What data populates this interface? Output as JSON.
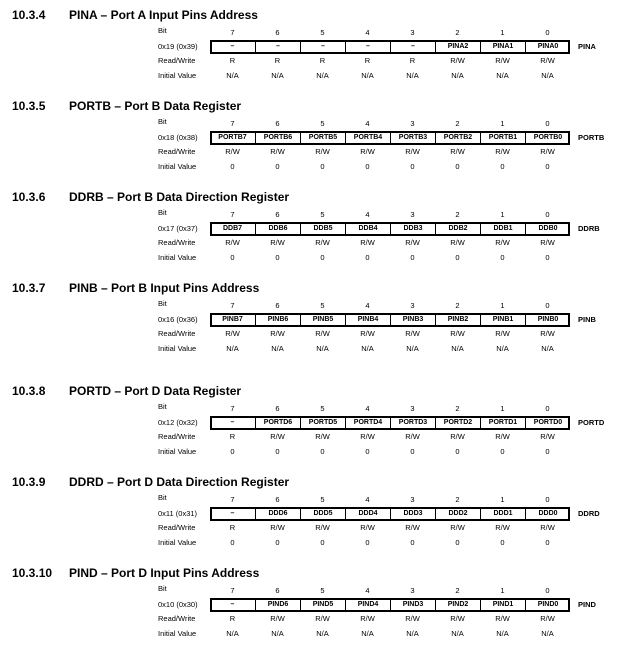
{
  "labels": {
    "bit": "Bit",
    "read_write": "Read/Write",
    "initial_value": "Initial Value"
  },
  "sections": [
    {
      "number": "10.3.4",
      "title": "PINA – Port A Input Pins Address",
      "address": "0x19 (0x39)",
      "register": "PINA",
      "bits": [
        "7",
        "6",
        "5",
        "4",
        "3",
        "2",
        "1",
        "0"
      ],
      "cells": [
        "–",
        "–",
        "–",
        "–",
        "–",
        "PINA2",
        "PINA1",
        "PINA0"
      ],
      "rw": [
        "R",
        "R",
        "R",
        "R",
        "R",
        "R/W",
        "R/W",
        "R/W"
      ],
      "init": [
        "N/A",
        "N/A",
        "N/A",
        "N/A",
        "N/A",
        "N/A",
        "N/A",
        "N/A"
      ]
    },
    {
      "number": "10.3.5",
      "title": "PORTB – Port B Data Register",
      "address": "0x18 (0x38)",
      "register": "PORTB",
      "bits": [
        "7",
        "6",
        "5",
        "4",
        "3",
        "2",
        "1",
        "0"
      ],
      "cells": [
        "PORTB7",
        "PORTB6",
        "PORTB5",
        "PORTB4",
        "PORTB3",
        "PORTB2",
        "PORTB1",
        "PORTB0"
      ],
      "rw": [
        "R/W",
        "R/W",
        "R/W",
        "R/W",
        "R/W",
        "R/W",
        "R/W",
        "R/W"
      ],
      "init": [
        "0",
        "0",
        "0",
        "0",
        "0",
        "0",
        "0",
        "0"
      ]
    },
    {
      "number": "10.3.6",
      "title": "DDRB – Port B Data Direction Register",
      "address": "0x17 (0x37)",
      "register": "DDRB",
      "bits": [
        "7",
        "6",
        "5",
        "4",
        "3",
        "2",
        "1",
        "0"
      ],
      "cells": [
        "DDB7",
        "DDB6",
        "DDB5",
        "DDB4",
        "DDB3",
        "DDB2",
        "DDB1",
        "DDB0"
      ],
      "rw": [
        "R/W",
        "R/W",
        "R/W",
        "R/W",
        "R/W",
        "R/W",
        "R/W",
        "R/W"
      ],
      "init": [
        "0",
        "0",
        "0",
        "0",
        "0",
        "0",
        "0",
        "0"
      ]
    },
    {
      "number": "10.3.7",
      "title": "PINB – Port B Input Pins Address",
      "address": "0x16 (0x36)",
      "register": "PINB",
      "bits": [
        "7",
        "6",
        "5",
        "4",
        "3",
        "2",
        "1",
        "0"
      ],
      "cells": [
        "PINB7",
        "PINB6",
        "PINB5",
        "PINB4",
        "PINB3",
        "PINB2",
        "PINB1",
        "PINB0"
      ],
      "rw": [
        "R/W",
        "R/W",
        "R/W",
        "R/W",
        "R/W",
        "R/W",
        "R/W",
        "R/W"
      ],
      "init": [
        "N/A",
        "N/A",
        "N/A",
        "N/A",
        "N/A",
        "N/A",
        "N/A",
        "N/A"
      ]
    },
    {
      "number": "10.3.8",
      "title": "PORTD – Port D Data Register",
      "address": "0x12 (0x32)",
      "register": "PORTD",
      "bits": [
        "7",
        "6",
        "5",
        "4",
        "3",
        "2",
        "1",
        "0"
      ],
      "cells": [
        "–",
        "PORTD6",
        "PORTD5",
        "PORTD4",
        "PORTD3",
        "PORTD2",
        "PORTD1",
        "PORTD0"
      ],
      "rw": [
        "R",
        "R/W",
        "R/W",
        "R/W",
        "R/W",
        "R/W",
        "R/W",
        "R/W"
      ],
      "init": [
        "0",
        "0",
        "0",
        "0",
        "0",
        "0",
        "0",
        "0"
      ]
    },
    {
      "number": "10.3.9",
      "title": "DDRD – Port D Data Direction Register",
      "address": "0x11 (0x31)",
      "register": "DDRD",
      "bits": [
        "7",
        "6",
        "5",
        "4",
        "3",
        "2",
        "1",
        "0"
      ],
      "cells": [
        "–",
        "DDD6",
        "DDD5",
        "DDD4",
        "DDD3",
        "DDD2",
        "DDD1",
        "DDD0"
      ],
      "rw": [
        "R",
        "R/W",
        "R/W",
        "R/W",
        "R/W",
        "R/W",
        "R/W",
        "R/W"
      ],
      "init": [
        "0",
        "0",
        "0",
        "0",
        "0",
        "0",
        "0",
        "0"
      ]
    },
    {
      "number": "10.3.10",
      "title": "PIND – Port D Input Pins Address",
      "address": "0x10 (0x30)",
      "register": "PIND",
      "bits": [
        "7",
        "6",
        "5",
        "4",
        "3",
        "2",
        "1",
        "0"
      ],
      "cells": [
        "–",
        "PIND6",
        "PIND5",
        "PIND4",
        "PIND3",
        "PIND2",
        "PIND1",
        "PIND0"
      ],
      "rw": [
        "R",
        "R/W",
        "R/W",
        "R/W",
        "R/W",
        "R/W",
        "R/W",
        "R/W"
      ],
      "init": [
        "N/A",
        "N/A",
        "N/A",
        "N/A",
        "N/A",
        "N/A",
        "N/A",
        "N/A"
      ]
    }
  ]
}
